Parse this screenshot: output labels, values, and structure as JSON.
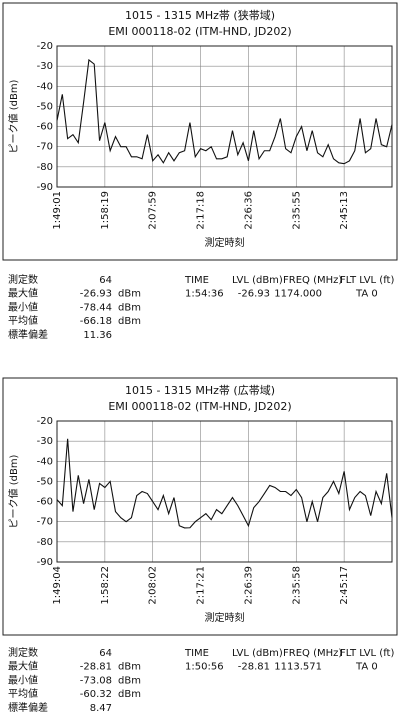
{
  "chart_data": [
    {
      "type": "line",
      "title": "1015 - 1315 MHz帯 (狭帯域)",
      "subtitle": "EMI 000118-02 (ITM-HND, JD202)",
      "y_label": "ピーク値 (dBm)",
      "x_label": "測定時刻",
      "grid": true,
      "color": "#111111",
      "categories": [
        "1:49:01",
        null,
        null,
        null,
        null,
        null,
        null,
        null,
        null,
        "1:58:19",
        null,
        null,
        null,
        null,
        null,
        null,
        null,
        null,
        "2:07:59",
        null,
        null,
        null,
        null,
        null,
        null,
        null,
        null,
        "2:17:18",
        null,
        null,
        null,
        null,
        null,
        null,
        null,
        null,
        "2:26:36",
        null,
        null,
        null,
        null,
        null,
        null,
        null,
        null,
        "2:35:55",
        null,
        null,
        null,
        null,
        null,
        null,
        null,
        null,
        "2:45:13",
        null,
        null,
        null,
        null,
        null,
        null,
        null,
        null,
        null
      ],
      "values": [
        -57,
        -44,
        -66,
        -64,
        -68,
        -48,
        -26.93,
        -29,
        -67,
        -58,
        -72,
        -65,
        -70,
        -70,
        -75,
        -75,
        -76,
        -64,
        -77,
        -74,
        -78,
        -73,
        -77,
        -73,
        -72,
        -58,
        -75,
        -71,
        -72,
        -70,
        -76,
        -76,
        -75,
        -62,
        -74,
        -68,
        -77,
        -62,
        -76,
        -72,
        -72,
        -65,
        -56,
        -71,
        -73,
        -65,
        -60,
        -72,
        -62,
        -73,
        -75,
        -69,
        -76,
        -78,
        -78.44,
        -77,
        -72,
        -56,
        -73,
        -71,
        -56,
        -69,
        -70,
        -59
      ],
      "ylim": [
        -90,
        -20
      ],
      "yticks": [
        -20,
        -30,
        -40,
        -50,
        -60,
        -70,
        -80,
        -90
      ]
    },
    {
      "type": "line",
      "title": "1015 - 1315 MHz帯 (広帯域)",
      "subtitle": "EMI 000118-02 (ITM-HND, JD202)",
      "y_label": "ピーク値 (dBm)",
      "x_label": "測定時刻",
      "grid": true,
      "color": "#111111",
      "categories": [
        "1:49:04",
        null,
        null,
        null,
        null,
        null,
        null,
        null,
        null,
        "1:58:22",
        null,
        null,
        null,
        null,
        null,
        null,
        null,
        null,
        "2:08:02",
        null,
        null,
        null,
        null,
        null,
        null,
        null,
        null,
        "2:17:21",
        null,
        null,
        null,
        null,
        null,
        null,
        null,
        null,
        "2:26:39",
        null,
        null,
        null,
        null,
        null,
        null,
        null,
        null,
        "2:35:58",
        null,
        null,
        null,
        null,
        null,
        null,
        null,
        null,
        "2:45:17",
        null,
        null,
        null,
        null,
        null,
        null,
        null,
        null,
        null
      ],
      "values": [
        -59,
        -62,
        -28.81,
        -65,
        -47,
        -61,
        -49,
        -64,
        -51,
        -53,
        -50,
        -65,
        -68,
        -70,
        -68,
        -57,
        -55,
        -56,
        -60,
        -64,
        -57,
        -66,
        -58,
        -72,
        -73.08,
        -73,
        -70,
        -68,
        -66,
        -69,
        -64,
        -66,
        -62,
        -58,
        -62,
        -67,
        -72,
        -63,
        -60,
        -56,
        -52,
        -53,
        -55,
        -55,
        -57,
        -54,
        -58,
        -70,
        -60,
        -70,
        -58,
        -55,
        -50,
        -56,
        -45,
        -64,
        -58,
        -55,
        -57,
        -67,
        -55,
        -61,
        -46,
        -68
      ],
      "ylim": [
        -90,
        -20
      ],
      "yticks": [
        -20,
        -30,
        -40,
        -50,
        -60,
        -70,
        -80,
        -90
      ]
    }
  ],
  "stats": [
    {
      "rows": [
        [
          "測定数",
          "64"
        ],
        [
          "最大値",
          "-26.93",
          "dBm"
        ],
        [
          "最小値",
          "-78.44",
          "dBm"
        ],
        [
          "平均値",
          "-66.18",
          "dBm"
        ],
        [
          "標準偏差",
          "11.36"
        ]
      ],
      "peak": {
        "headers": [
          "TIME",
          "LVL (dBm)",
          "FREQ (MHz)",
          "FLT LVL (ft)"
        ],
        "values": [
          "1:54:36",
          "-26.93",
          "1174.000",
          "TA 0"
        ]
      }
    },
    {
      "rows": [
        [
          "測定数",
          "64"
        ],
        [
          "最大値",
          "-28.81",
          "dBm"
        ],
        [
          "最小値",
          "-73.08",
          "dBm"
        ],
        [
          "平均値",
          "-60.32",
          "dBm"
        ],
        [
          "標準偏差",
          "8.47"
        ]
      ],
      "peak": {
        "headers": [
          "TIME",
          "LVL (dBm)",
          "FREQ (MHz)",
          "FLT LVL (ft)"
        ],
        "values": [
          "1:50:56",
          "-28.81",
          "1113.571",
          "TA 0"
        ]
      }
    }
  ]
}
